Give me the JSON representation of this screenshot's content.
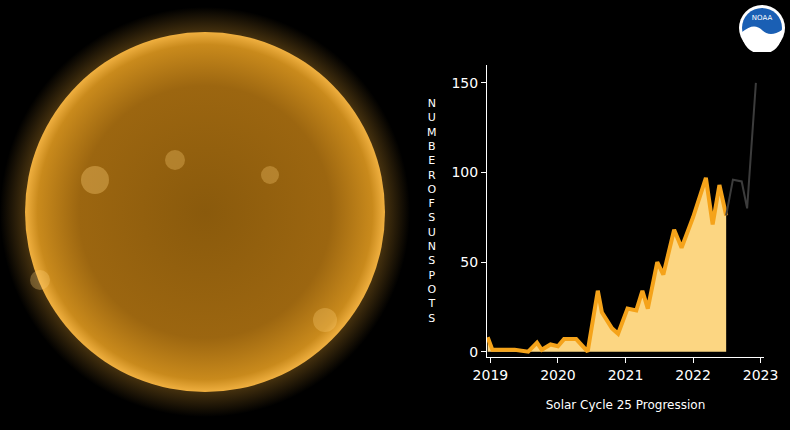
{
  "chart_data": {
    "type": "area",
    "x_label": "Solar Cycle 25 Progression",
    "y_label": "NUMBER OF SUNSPOTS",
    "logo_text": "NOAA",
    "xlim": [
      2018.95,
      2023.05
    ],
    "xticks": [
      2019,
      2020,
      2021,
      2022,
      2023
    ],
    "ylim": [
      -3,
      160
    ],
    "yticks": [
      0,
      50,
      100,
      150
    ],
    "grid": false,
    "series": [
      {
        "type": "area",
        "color": "#f5a31a",
        "x": [
          2018.96,
          2019.03,
          2019.36,
          2019.56,
          2019.69,
          2019.76,
          2019.89,
          2020.0,
          2020.09,
          2020.27,
          2020.44,
          2020.59,
          2020.65,
          2020.8,
          2020.89,
          2021.03,
          2021.16,
          2021.25,
          2021.33,
          2021.47,
          2021.56,
          2021.72,
          2021.83,
          2022.0,
          2022.19,
          2022.29,
          2022.39,
          2022.49
        ],
        "values": [
          8,
          1,
          1,
          0,
          5,
          1,
          4,
          3,
          7,
          7,
          0,
          34,
          22,
          13,
          10,
          24,
          23,
          34,
          24,
          50,
          43,
          68,
          58,
          75,
          97,
          71,
          93,
          76
        ]
      },
      {
        "type": "line",
        "color": "#3c3c3c",
        "x": [
          2022.49,
          2022.59,
          2022.72,
          2022.8,
          2022.93
        ],
        "values": [
          76,
          96,
          95,
          80,
          150
        ]
      }
    ]
  }
}
